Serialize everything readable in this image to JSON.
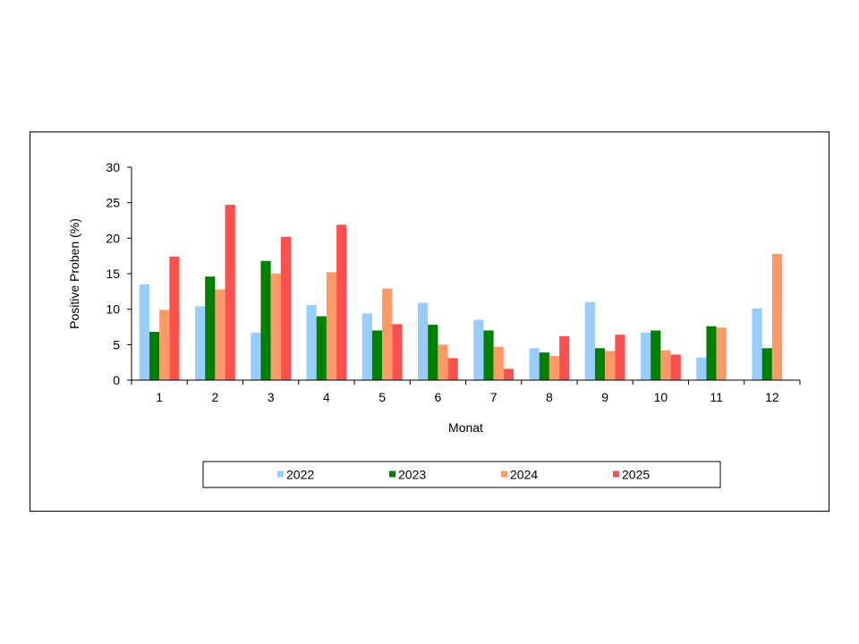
{
  "chart_data": {
    "type": "bar",
    "title": "",
    "xlabel": "Monat",
    "ylabel": "Positive Proben (%)",
    "ylim": [
      0,
      30
    ],
    "yticks": [
      0,
      5,
      10,
      15,
      20,
      25,
      30
    ],
    "categories": [
      "1",
      "2",
      "3",
      "4",
      "5",
      "6",
      "7",
      "8",
      "9",
      "10",
      "11",
      "12"
    ],
    "grid": false,
    "legend_position": "bottom",
    "series": [
      {
        "name": "2022",
        "color": "#99ccff",
        "values": [
          13.5,
          10.4,
          6.7,
          10.6,
          9.4,
          10.9,
          8.5,
          4.5,
          11.0,
          6.7,
          3.2,
          10.1
        ]
      },
      {
        "name": "2023",
        "color": "#008000",
        "values": [
          6.8,
          14.6,
          16.8,
          9.0,
          7.0,
          7.8,
          7.0,
          3.9,
          4.5,
          7.0,
          7.6,
          4.5
        ]
      },
      {
        "name": "2024",
        "color": "#ff9966",
        "values": [
          9.9,
          12.8,
          15.0,
          15.2,
          12.9,
          5.0,
          4.7,
          3.4,
          4.1,
          4.2,
          7.4,
          17.8
        ]
      },
      {
        "name": "2025",
        "color": "#ff5050",
        "values": [
          17.4,
          24.7,
          20.2,
          21.9,
          7.9,
          3.1,
          1.6,
          6.2,
          6.4,
          3.6,
          null,
          null
        ]
      }
    ]
  }
}
